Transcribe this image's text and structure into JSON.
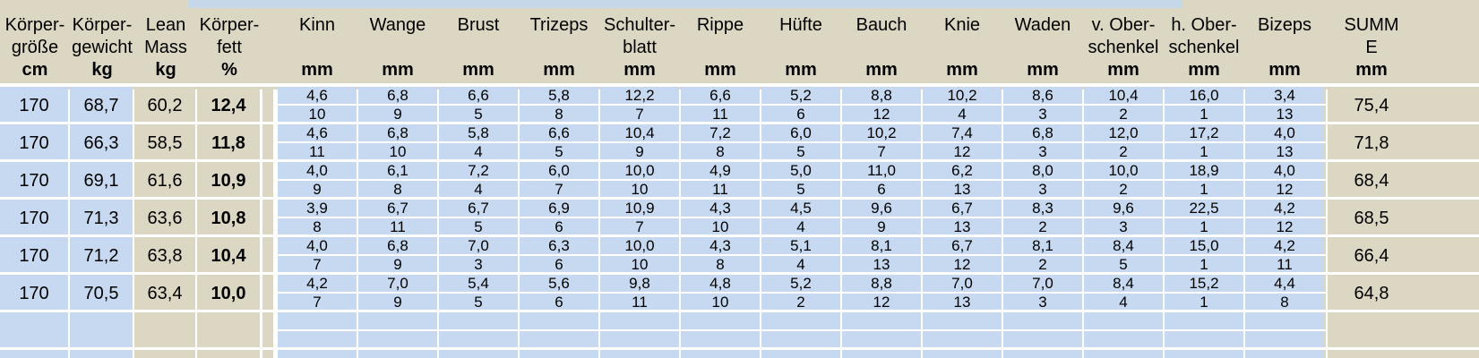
{
  "headers": {
    "height": [
      "Körper-",
      "größe",
      "cm"
    ],
    "weight": [
      "Körper-",
      "gewicht",
      "kg"
    ],
    "lean": [
      "Lean",
      "Mass",
      "kg"
    ],
    "fat": [
      "Körper-",
      "fett",
      "%"
    ],
    "sites": [
      {
        "l1": "Kinn",
        "l2": "",
        "u": "mm"
      },
      {
        "l1": "Wange",
        "l2": "",
        "u": "mm"
      },
      {
        "l1": "Brust",
        "l2": "",
        "u": "mm"
      },
      {
        "l1": "Trizeps",
        "l2": "",
        "u": "mm"
      },
      {
        "l1": "Schulter-",
        "l2": "blatt",
        "u": "mm"
      },
      {
        "l1": "Rippe",
        "l2": "",
        "u": "mm"
      },
      {
        "l1": "Hüfte",
        "l2": "",
        "u": "mm"
      },
      {
        "l1": "Bauch",
        "l2": "",
        "u": "mm"
      },
      {
        "l1": "Knie",
        "l2": "",
        "u": "mm"
      },
      {
        "l1": "Waden",
        "l2": "",
        "u": "mm"
      },
      {
        "l1": "v. Ober-",
        "l2": "schenkel",
        "u": "mm"
      },
      {
        "l1": "h. Ober-",
        "l2": "schenkel",
        "u": "mm"
      },
      {
        "l1": "Bizeps",
        "l2": "",
        "u": "mm"
      }
    ],
    "sum": [
      "SUMM",
      "E",
      "mm"
    ]
  },
  "rows": [
    {
      "height": "170",
      "weight": "68,7",
      "lean": "60,2",
      "fat": "12,4",
      "mm": [
        "4,6",
        "6,8",
        "6,6",
        "5,8",
        "12,2",
        "6,6",
        "5,2",
        "8,8",
        "10,2",
        "8,6",
        "10,4",
        "16,0",
        "3,4"
      ],
      "rank": [
        "10",
        "9",
        "5",
        "8",
        "7",
        "11",
        "6",
        "12",
        "4",
        "3",
        "2",
        "1",
        "13"
      ],
      "sum": "75,4"
    },
    {
      "height": "170",
      "weight": "66,3",
      "lean": "58,5",
      "fat": "11,8",
      "mm": [
        "4,6",
        "6,8",
        "5,8",
        "6,6",
        "10,4",
        "7,2",
        "6,0",
        "10,2",
        "7,4",
        "6,8",
        "12,0",
        "17,2",
        "4,0"
      ],
      "rank": [
        "11",
        "10",
        "4",
        "5",
        "9",
        "8",
        "5",
        "7",
        "12",
        "3",
        "2",
        "1",
        "13"
      ],
      "sum": "71,8"
    },
    {
      "height": "170",
      "weight": "69,1",
      "lean": "61,6",
      "fat": "10,9",
      "mm": [
        "4,0",
        "6,1",
        "7,2",
        "6,0",
        "10,0",
        "4,9",
        "5,0",
        "11,0",
        "6,2",
        "8,0",
        "10,0",
        "18,9",
        "4,0"
      ],
      "rank": [
        "9",
        "8",
        "4",
        "7",
        "10",
        "11",
        "5",
        "6",
        "13",
        "3",
        "2",
        "1",
        "12"
      ],
      "sum": "68,4"
    },
    {
      "height": "170",
      "weight": "71,3",
      "lean": "63,6",
      "fat": "10,8",
      "mm": [
        "3,9",
        "6,7",
        "6,7",
        "6,9",
        "10,9",
        "4,3",
        "4,5",
        "9,6",
        "6,7",
        "8,3",
        "9,6",
        "22,5",
        "4,2"
      ],
      "rank": [
        "8",
        "11",
        "5",
        "6",
        "7",
        "10",
        "4",
        "9",
        "13",
        "2",
        "3",
        "1",
        "12"
      ],
      "sum": "68,5"
    },
    {
      "height": "170",
      "weight": "71,2",
      "lean": "63,8",
      "fat": "10,4",
      "mm": [
        "4,0",
        "6,8",
        "7,0",
        "6,3",
        "10,0",
        "4,3",
        "5,1",
        "8,1",
        "6,7",
        "8,1",
        "8,4",
        "15,0",
        "4,2"
      ],
      "rank": [
        "7",
        "9",
        "3",
        "6",
        "10",
        "8",
        "4",
        "13",
        "12",
        "2",
        "5",
        "1",
        "11"
      ],
      "sum": "66,4"
    },
    {
      "height": "170",
      "weight": "70,5",
      "lean": "63,4",
      "fat": "10,0",
      "mm": [
        "4,2",
        "7,0",
        "5,4",
        "5,6",
        "9,8",
        "4,8",
        "5,2",
        "8,8",
        "7,0",
        "7,0",
        "8,4",
        "15,2",
        "4,4"
      ],
      "rank": [
        "7",
        "9",
        "5",
        "6",
        "11",
        "10",
        "2",
        "12",
        "13",
        "3",
        "4",
        "1",
        "8"
      ],
      "sum": "64,8"
    }
  ],
  "colors": {
    "background": "#dcd7c3",
    "cell_blue": "#c6d9f0",
    "grid": "#ffffff"
  }
}
